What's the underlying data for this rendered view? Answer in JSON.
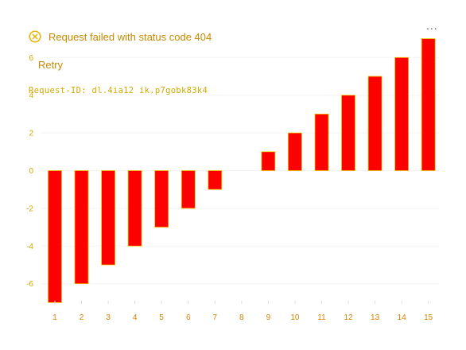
{
  "error": {
    "message": "Request failed with status code 404",
    "retry_label": "Retry",
    "request_id": "Request-ID: dl.4ia12 ik.p7gobk83k4",
    "icon": "close-circle-icon"
  },
  "menu": {
    "more_label": "..."
  },
  "colors": {
    "bar": "#ff0000",
    "bar_outline": "#e8c400",
    "tick_label": "#d4a800",
    "x_tick_label": "#d98200",
    "grid": "#f3f3f3"
  },
  "chart_data": {
    "type": "bar",
    "categories": [
      "1",
      "2",
      "3",
      "4",
      "5",
      "6",
      "7",
      "8",
      "9",
      "10",
      "11",
      "12",
      "13",
      "14",
      "15"
    ],
    "values": [
      -7,
      -6,
      -5,
      -4,
      -3,
      -2,
      -1,
      0,
      1,
      2,
      3,
      4,
      5,
      6,
      7
    ],
    "y_ticks": [
      "-6",
      "-4",
      "-2",
      "0",
      "2",
      "4",
      "6"
    ],
    "ylim": [
      -7,
      7
    ],
    "title": "",
    "xlabel": "",
    "ylabel": "",
    "grid": true,
    "legend": "none"
  }
}
